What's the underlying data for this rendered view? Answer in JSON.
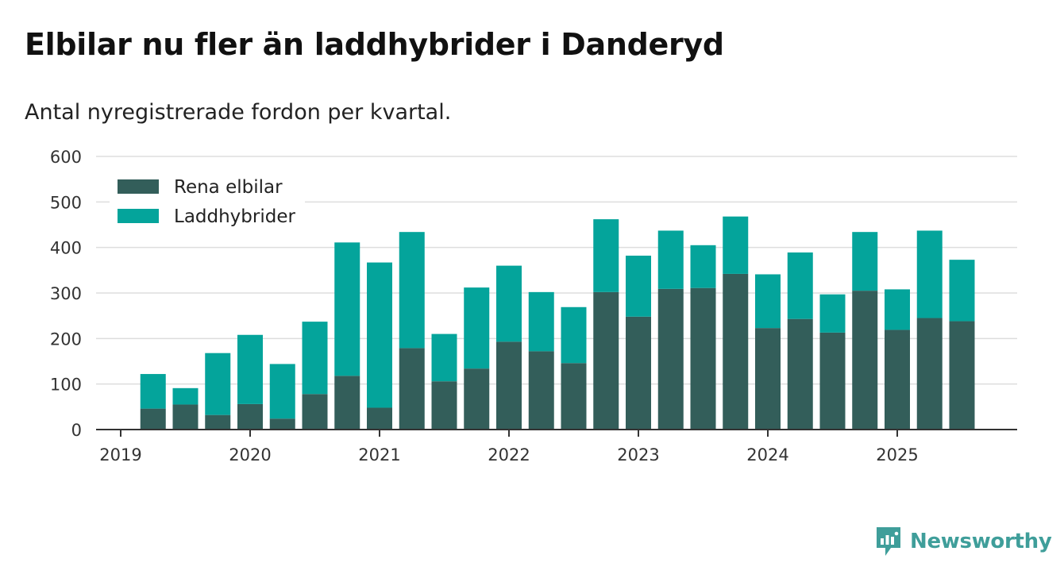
{
  "title": "Elbilar nu fler än laddhybrider i Danderyd",
  "subtitle": "Antal nyregistrerade fordon per kvartal.",
  "brand": {
    "name": "Newsworthy",
    "icon": "newsworthy-logo-icon"
  },
  "colors": {
    "rena_elbilar": "#335e5a",
    "laddhybrider": "#04a49b",
    "grid": "#dddddd",
    "axis": "#333333"
  },
  "chart_data": {
    "type": "bar",
    "stacked": true,
    "title": "Elbilar nu fler än laddhybrider i Danderyd",
    "subtitle": "Antal nyregistrerade fordon per kvartal.",
    "xlabel": "",
    "ylabel": "",
    "ylim": [
      0,
      600
    ],
    "yticks": [
      "0",
      "100",
      "200",
      "300",
      "400",
      "500",
      "600"
    ],
    "xticks": [
      "2019",
      "2020",
      "2021",
      "2022",
      "2023",
      "2024",
      "2025"
    ],
    "legend_position": "top-left",
    "grid": true,
    "categories": [
      "2019 Q2",
      "2019 Q3",
      "2019 Q4",
      "2020 Q1",
      "2020 Q2",
      "2020 Q3",
      "2020 Q4",
      "2021 Q1",
      "2021 Q2",
      "2021 Q3",
      "2021 Q4",
      "2022 Q1",
      "2022 Q2",
      "2022 Q3",
      "2022 Q4",
      "2023 Q1",
      "2023 Q2",
      "2023 Q3",
      "2023 Q4",
      "2024 Q1",
      "2024 Q2",
      "2024 Q3",
      "2024 Q4",
      "2025 Q1",
      "2025 Q2",
      "2025 Q3"
    ],
    "series": [
      {
        "name": "Rena elbilar",
        "values": [
          46,
          55,
          32,
          56,
          24,
          78,
          118,
          48,
          179,
          106,
          134,
          193,
          172,
          146,
          302,
          248,
          309,
          311,
          342,
          223,
          243,
          213,
          305,
          219,
          245,
          238
        ]
      },
      {
        "name": "Laddhybrider",
        "values": [
          76,
          36,
          136,
          152,
          120,
          159,
          293,
          319,
          255,
          104,
          178,
          167,
          130,
          123,
          160,
          134,
          128,
          94,
          126,
          118,
          146,
          84,
          129,
          89,
          192,
          135
        ]
      }
    ]
  }
}
